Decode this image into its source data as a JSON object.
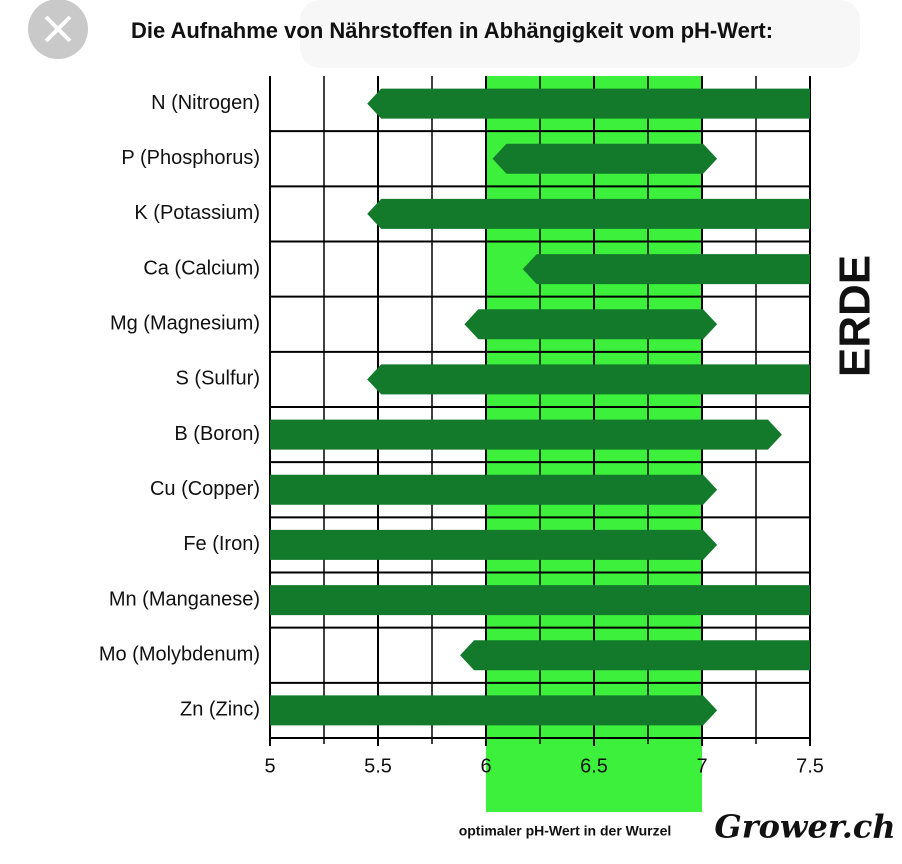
{
  "chart_data": {
    "type": "range-bar",
    "title": "Die Aufnahme von Nährstoffen in Abhängigkeit vom pH-Wert:",
    "side_label": "ERDE",
    "watermark": "Grower.ch",
    "categories": [
      "N (Nitrogen)",
      "P (Phosphorus)",
      "K (Potassium)",
      "Ca (Calcium)",
      "Mg (Magnesium)",
      "S (Sulfur)",
      "B (Boron)",
      "Cu (Copper)",
      "Fe (Iron)",
      "Mn (Manganese)",
      "Mo (Molybdenum)",
      "Zn (Zinc)"
    ],
    "starts": [
      5.45,
      6.03,
      5.45,
      6.17,
      5.9,
      5.45,
      5,
      5,
      5,
      5,
      5.88,
      5
    ],
    "ends": [
      7.5,
      7.07,
      7.5,
      7.5,
      7.07,
      7.5,
      7.37,
      7.07,
      7.07,
      7.5,
      7.5,
      7.07
    ],
    "color": "#137a2c",
    "xlim": [
      5,
      7.5
    ],
    "xticks": [
      5,
      5.5,
      6,
      6.5,
      7,
      7.5
    ],
    "xgrid": [
      5.25,
      5.75,
      6.25,
      6.75,
      7.25
    ],
    "highlight": {
      "range": [
        6,
        7
      ],
      "label": "optimaler pH-Wert in der Wurzel",
      "color": "#3cf03c"
    }
  }
}
